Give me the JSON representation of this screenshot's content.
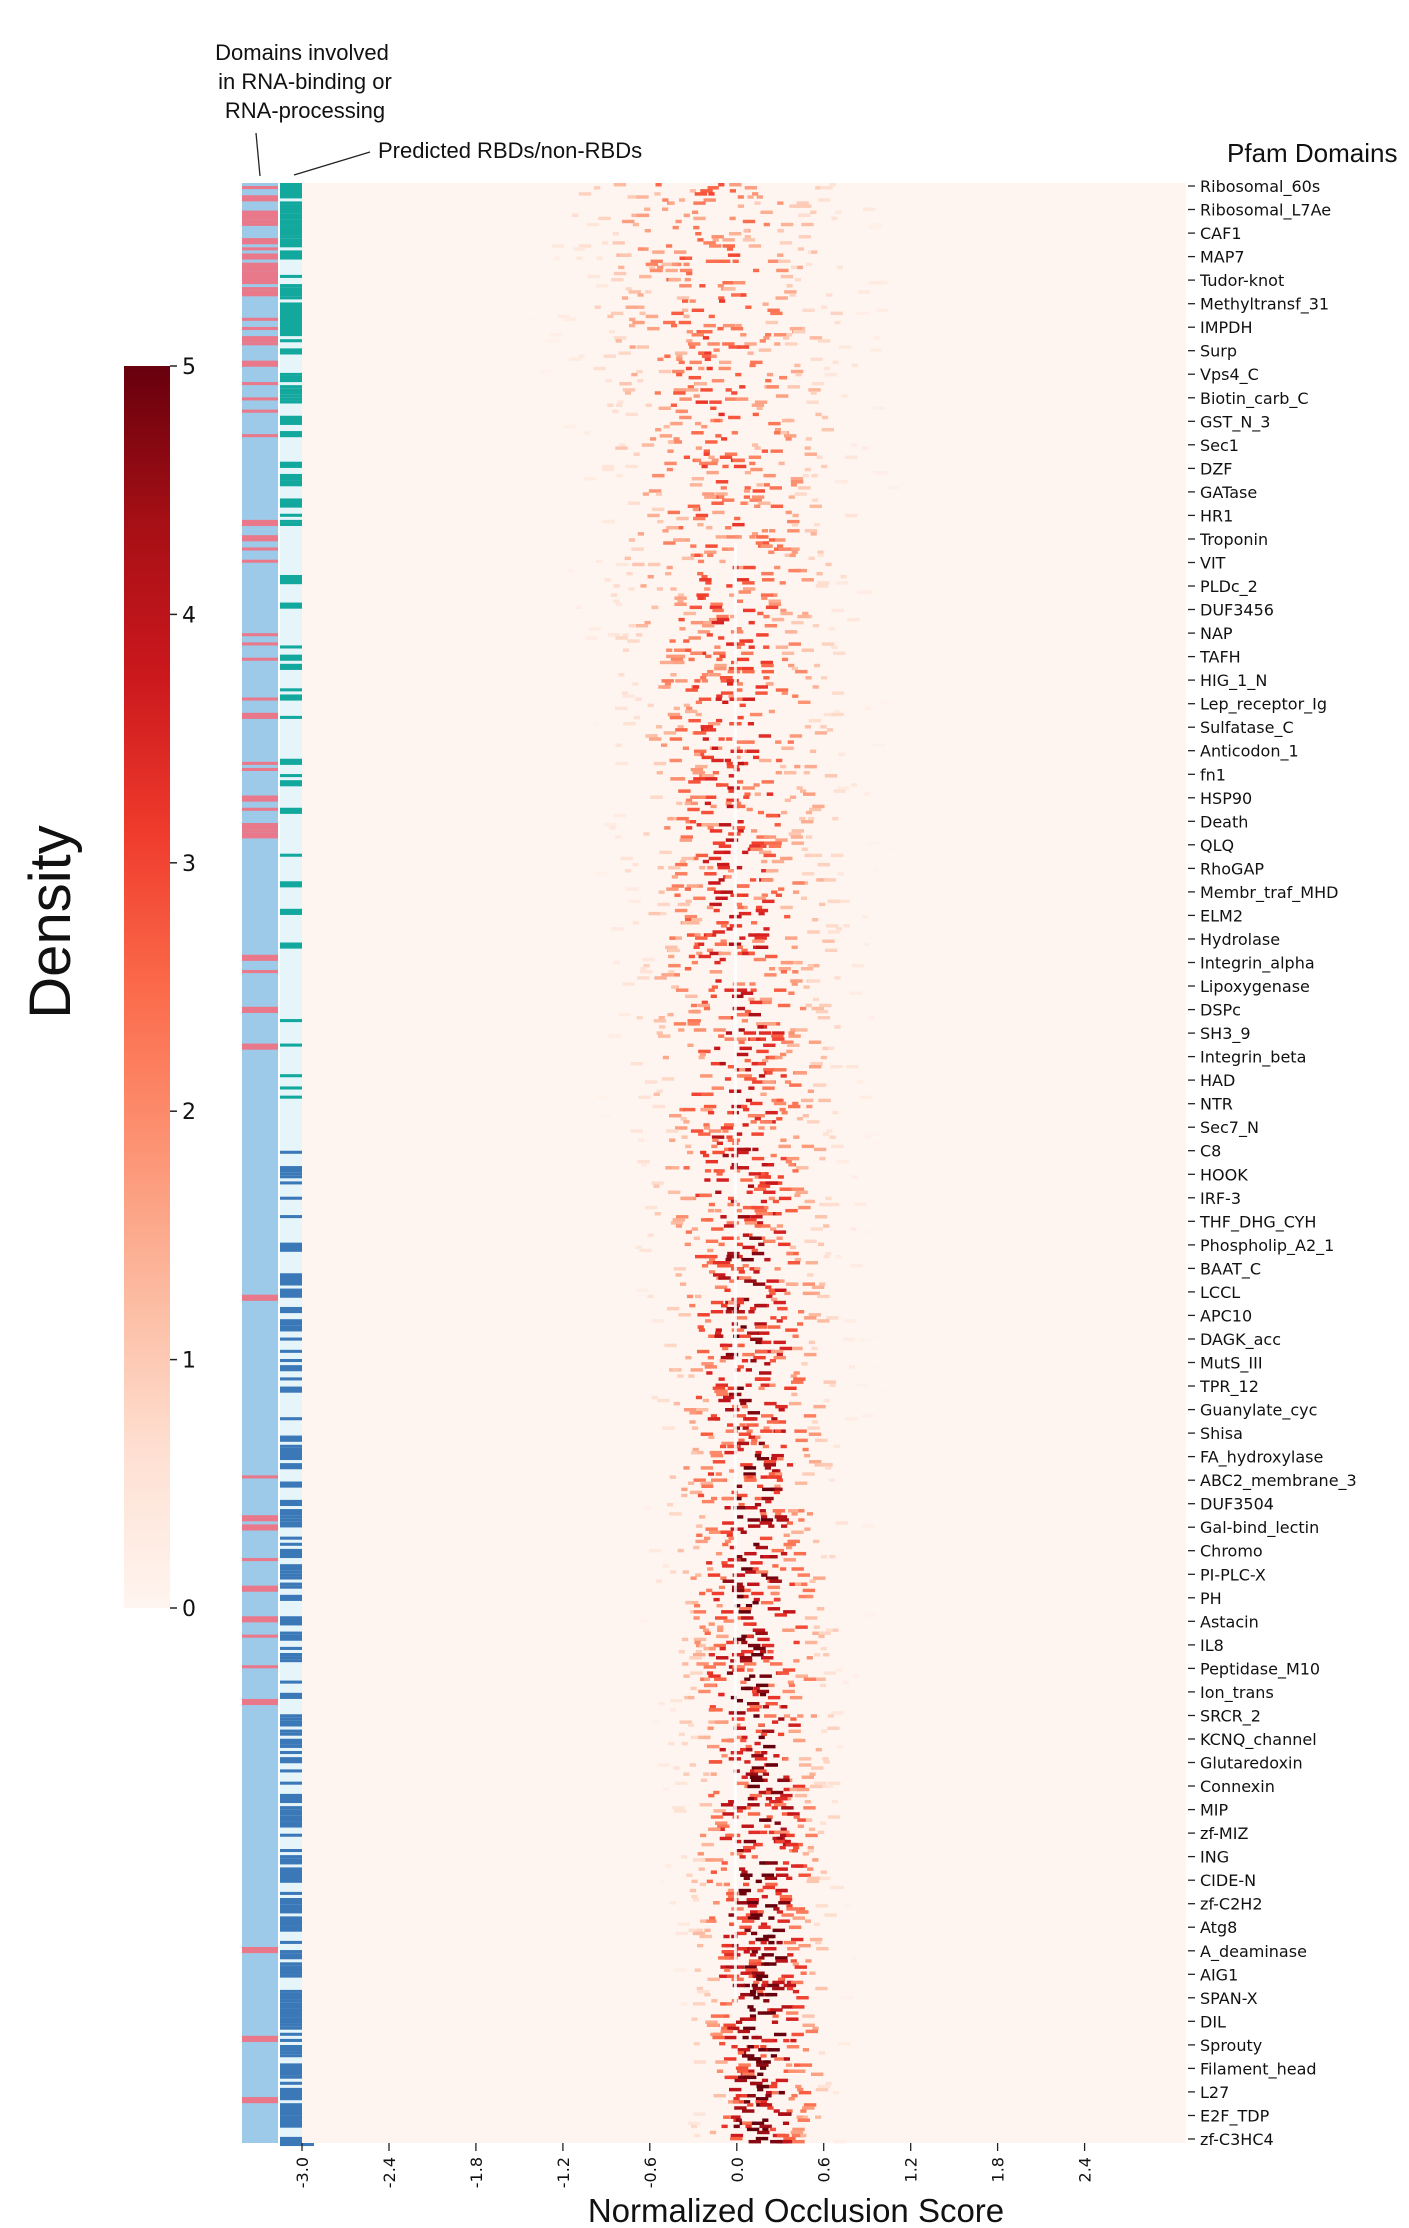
{
  "chart_data": {
    "type": "heatmap",
    "title": "",
    "xlabel": "Normalized Occlusion Score",
    "ylabel_right": "Pfam Domains",
    "colorbar_label": "Density",
    "colorbar_ticks": [
      "0",
      "1",
      "2",
      "3",
      "4",
      "5"
    ],
    "colorbar_range": [
      0,
      5
    ],
    "colormap": "Reds",
    "x_tick_labels": [
      "-3.0",
      "-2.4",
      "-1.8",
      "-1.2",
      "-0.6",
      "0.0",
      "0.6",
      "1.2",
      "1.8",
      "2.4"
    ],
    "x_tick_values": [
      -3.0,
      -2.4,
      -1.8,
      -1.2,
      -0.6,
      0.0,
      0.6,
      1.2,
      1.8,
      2.4
    ],
    "x_range": [
      -3.0,
      3.1
    ],
    "annotation_rna": "Domains involved\nin RNA-binding or\nRNA-processing",
    "annotation_rbd": "Predicted RBDs/non-RBDs",
    "pfam_domains": [
      "Ribosomal_60s",
      "Ribosomal_L7Ae",
      "CAF1",
      "MAP7",
      "Tudor-knot",
      "Methyltransf_31",
      "IMPDH",
      "Surp",
      "Vps4_C",
      "Biotin_carb_C",
      "GST_N_3",
      "Sec1",
      "DZF",
      "GATase",
      "HR1",
      "Troponin",
      "VIT",
      "PLDc_2",
      "DUF3456",
      "NAP",
      "TAFH",
      "HIG_1_N",
      "Lep_receptor_Ig",
      "Sulfatase_C",
      "Anticodon_1",
      "fn1",
      "HSP90",
      "Death",
      "QLQ",
      "RhoGAP",
      "Membr_traf_MHD",
      "ELM2",
      "Hydrolase",
      "Integrin_alpha",
      "Lipoxygenase",
      "DSPc",
      "SH3_9",
      "Integrin_beta",
      "HAD",
      "NTR",
      "Sec7_N",
      "C8",
      "HOOK",
      "IRF-3",
      "THF_DHG_CYH",
      "Phospholip_A2_1",
      "BAAT_C",
      "LCCL",
      "APC10",
      "DAGK_acc",
      "MutS_III",
      "TPR_12",
      "Guanylate_cyc",
      "Shisa",
      "FA_hydroxylase",
      "ABC2_membrane_3",
      "DUF3504",
      "Gal-bind_lectin",
      "Chromo",
      "PI-PLC-X",
      "PH",
      "Astacin",
      "IL8",
      "Peptidase_M10",
      "Ion_trans",
      "SRCR_2",
      "KCNQ_channel",
      "Glutaredoxin",
      "Connexin",
      "MIP",
      "zf-MIZ",
      "ING",
      "CIDE-N",
      "zf-C2H2",
      "Atg8",
      "A_deaminase",
      "AIG1",
      "SPAN-X",
      "DIL",
      "Sprouty",
      "Filament_head",
      "L27",
      "E2F_TDP",
      "zf-C3HC4"
    ],
    "density_pattern": {
      "description": "Each row is a Pfam domain's distribution of normalized occlusion scores; top rows are broad around -0.6..0.3, lower rows concentrate near 0.0..0.3",
      "top_center": -0.25,
      "bottom_center": 0.15,
      "top_spread": 0.55,
      "bottom_spread": 0.22,
      "max_density": 5
    },
    "side_bars": {
      "rna_processing": {
        "base_color": "#9ecae9",
        "mark_color": "#e8788a",
        "mark_density_top": 0.45,
        "mark_density_bottom": 0.03
      },
      "rbd_prediction": {
        "top_color": "#13a89e",
        "bottom_color": "#3b78b8",
        "empty_color": "#e6f5fa",
        "switch_fraction": 0.49
      }
    }
  }
}
